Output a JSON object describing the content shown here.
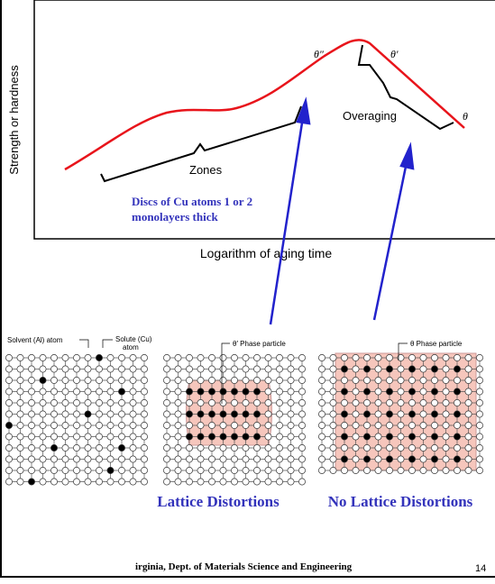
{
  "chart": {
    "y_axis_label": "Strength or hardness",
    "x_axis_label": "Logarithm of aging time",
    "curve_labels": {
      "theta_double_prime": "θ″",
      "theta_prime": "θ′",
      "theta": "θ",
      "overaging": "Overaging",
      "zones": "Zones"
    },
    "note": [
      "Discs of Cu atoms 1 or 2",
      "monolayers thick"
    ]
  },
  "lattices": {
    "solvent_label": "Solvent (Al) atom",
    "solute_label": [
      "Solute (Cu)",
      "atom"
    ],
    "theta_prime_label": "θ′ Phase particle",
    "theta_label": "θ Phase particle",
    "captions": [
      "Lattice Distortions",
      "No Lattice Distortions"
    ]
  },
  "footer": {
    "text": "irginia, Dept. of Materials Science and Engineering",
    "page": "14"
  }
}
